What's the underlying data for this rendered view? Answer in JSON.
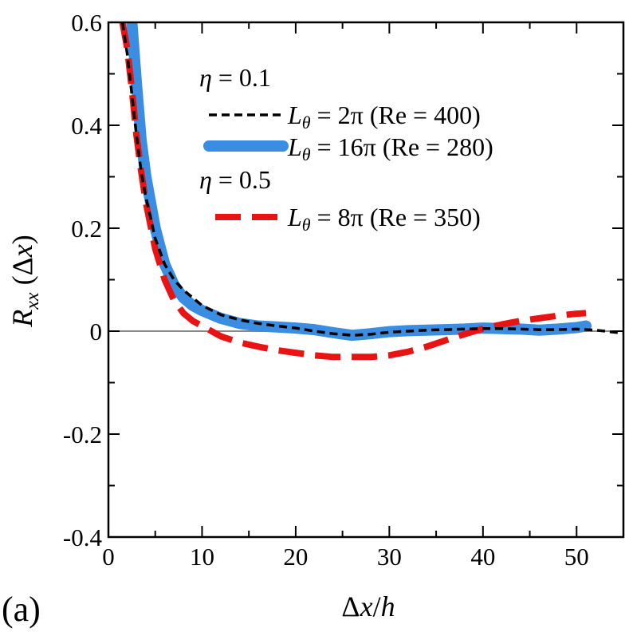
{
  "panel_label": "(a)",
  "chart_data": {
    "type": "line",
    "title": "",
    "xlabel": "Δx/h",
    "ylabel": "R_xx (Δx)",
    "xlim": [
      0,
      55
    ],
    "ylim": [
      -0.4,
      0.6
    ],
    "xticks": [
      0,
      10,
      20,
      30,
      40,
      50
    ],
    "yticks": [
      -0.4,
      -0.2,
      0,
      0.2,
      0.4,
      0.6
    ],
    "xtick_labels": [
      "0",
      "10",
      "20",
      "30",
      "40",
      "50"
    ],
    "ytick_labels": [
      "-0.4",
      "-0.2",
      "0",
      "0.2",
      "0.4",
      "0.6"
    ],
    "zero_line": true,
    "grid": false,
    "legend_position": "top-right",
    "legend_groups": [
      {
        "header": "η = 0.1",
        "entries": [
          0,
          1
        ]
      },
      {
        "header": "η = 0.5",
        "entries": [
          2
        ]
      }
    ],
    "series": [
      {
        "name": "L_θ =   2π (Re = 400)",
        "color": "#000000",
        "style": "dashed-fine",
        "x": [
          1.5,
          2.0,
          2.5,
          3.0,
          3.5,
          4.0,
          5.0,
          6.0,
          7.0,
          8.0,
          9.0,
          10.0,
          12.0,
          14.0,
          16.0,
          18.0,
          20.0,
          22.0,
          24.0,
          26.0,
          28.0,
          30.0,
          32.0,
          34.0,
          36.0,
          38.0,
          40.0,
          42.0,
          44.0,
          46.0,
          48.0,
          50.0,
          52.0,
          55.0
        ],
        "y": [
          0.6,
          0.54,
          0.46,
          0.38,
          0.31,
          0.26,
          0.18,
          0.13,
          0.1,
          0.08,
          0.065,
          0.05,
          0.032,
          0.022,
          0.015,
          0.01,
          0.006,
          0.0,
          -0.005,
          -0.008,
          -0.006,
          -0.002,
          0.0,
          0.002,
          0.003,
          0.004,
          0.005,
          0.005,
          0.004,
          0.003,
          0.003,
          0.004,
          0.002,
          -0.004
        ]
      },
      {
        "name": "L_θ = 16π (Re = 280)",
        "color": "#3a8de0",
        "style": "solid-thick",
        "x": [
          2.5,
          3.0,
          3.5,
          4.0,
          5.0,
          6.0,
          7.0,
          8.0,
          9.0,
          10.0,
          12.0,
          14.0,
          16.0,
          18.0,
          20.0,
          22.0,
          24.0,
          26.0,
          28.0,
          30.0,
          32.0,
          34.0,
          36.0,
          38.0,
          40.0,
          42.0,
          44.0,
          46.0,
          48.0,
          50.0,
          51.0
        ],
        "y": [
          0.6,
          0.48,
          0.37,
          0.3,
          0.2,
          0.13,
          0.09,
          0.065,
          0.05,
          0.04,
          0.025,
          0.015,
          0.01,
          0.008,
          0.006,
          0.003,
          -0.003,
          -0.008,
          -0.005,
          -0.001,
          0.001,
          0.002,
          0.003,
          0.004,
          0.006,
          0.005,
          0.004,
          0.002,
          0.004,
          0.007,
          0.01
        ]
      },
      {
        "name": "L_θ =   8π (Re = 350)",
        "color": "#e81414",
        "style": "dashed-long",
        "x": [
          1.5,
          2.0,
          2.5,
          3.0,
          3.5,
          4.0,
          5.0,
          6.0,
          7.0,
          8.0,
          9.0,
          10.0,
          12.0,
          14.0,
          16.0,
          18.0,
          20.0,
          22.0,
          24.0,
          26.0,
          28.0,
          30.0,
          32.0,
          34.0,
          36.0,
          38.0,
          40.0,
          42.0,
          44.0,
          46.0,
          48.0,
          50.0,
          51.0
        ],
        "y": [
          0.6,
          0.55,
          0.47,
          0.38,
          0.31,
          0.25,
          0.16,
          0.1,
          0.06,
          0.035,
          0.02,
          0.01,
          -0.01,
          -0.022,
          -0.03,
          -0.037,
          -0.042,
          -0.047,
          -0.05,
          -0.05,
          -0.05,
          -0.047,
          -0.04,
          -0.03,
          -0.018,
          -0.006,
          0.005,
          0.013,
          0.02,
          0.025,
          0.03,
          0.034,
          0.035
        ]
      }
    ]
  }
}
